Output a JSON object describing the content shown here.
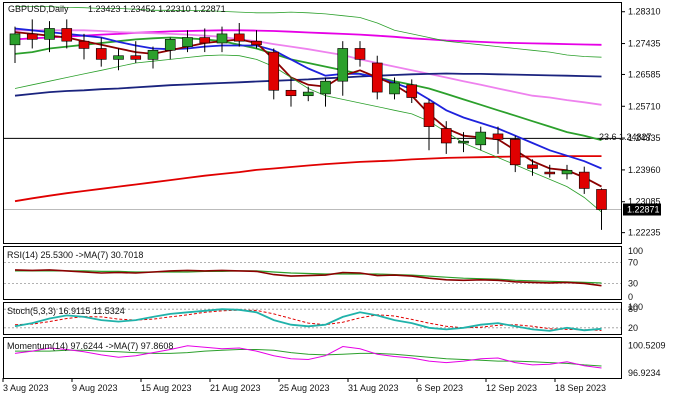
{
  "chart_data": {
    "type": "candlestick",
    "symbol_label": "GBPUSD,Daily",
    "ohlc_label": "1.23423 1.23452 1.22310 1.22871",
    "current_price": 1.22871,
    "price_axis": {
      "range": [
        1.2195,
        1.2855
      ],
      "ticks": [
        1.2831,
        1.27435,
        1.26585,
        1.2571,
        1.24835,
        1.2396,
        1.23085,
        1.22235
      ],
      "tick_labels": [
        "1.28310",
        "1.27435",
        "1.26585",
        "1.25710",
        "1.24835",
        "1.23960",
        "1.23085",
        "1.22235"
      ]
    },
    "fib_line": {
      "label": "23.6 1.24827",
      "value": 1.24827
    },
    "x_labels": [
      {
        "label": "3 Aug 2023",
        "i": 0
      },
      {
        "label": "9 Aug 2023",
        "i": 4
      },
      {
        "label": "15 Aug 2023",
        "i": 8
      },
      {
        "label": "21 Aug 2023",
        "i": 12
      },
      {
        "label": "25 Aug 2023",
        "i": 16
      },
      {
        "label": "31 Aug 2023",
        "i": 20
      },
      {
        "label": "6 Sep 2023",
        "i": 24
      },
      {
        "label": "12 Sep 2023",
        "i": 28
      },
      {
        "label": "18 Sep 2023",
        "i": 32
      }
    ],
    "candles": [
      {
        "o": 1.274,
        "h": 1.279,
        "l": 1.269,
        "c": 1.277
      },
      {
        "o": 1.277,
        "h": 1.281,
        "l": 1.273,
        "c": 1.2755
      },
      {
        "o": 1.2755,
        "h": 1.2805,
        "l": 1.272,
        "c": 1.2785
      },
      {
        "o": 1.2785,
        "h": 1.281,
        "l": 1.273,
        "c": 1.275
      },
      {
        "o": 1.275,
        "h": 1.277,
        "l": 1.27,
        "c": 1.273
      },
      {
        "o": 1.273,
        "h": 1.276,
        "l": 1.268,
        "c": 1.27
      },
      {
        "o": 1.27,
        "h": 1.273,
        "l": 1.267,
        "c": 1.271
      },
      {
        "o": 1.271,
        "h": 1.275,
        "l": 1.269,
        "c": 1.27
      },
      {
        "o": 1.27,
        "h": 1.2735,
        "l": 1.2675,
        "c": 1.2725
      },
      {
        "o": 1.2725,
        "h": 1.276,
        "l": 1.27,
        "c": 1.2755
      },
      {
        "o": 1.2735,
        "h": 1.278,
        "l": 1.272,
        "c": 1.276
      },
      {
        "o": 1.276,
        "h": 1.2785,
        "l": 1.272,
        "c": 1.2745
      },
      {
        "o": 1.2745,
        "h": 1.279,
        "l": 1.272,
        "c": 1.277
      },
      {
        "o": 1.277,
        "h": 1.28,
        "l": 1.2735,
        "c": 1.275
      },
      {
        "o": 1.275,
        "h": 1.278,
        "l": 1.273,
        "c": 1.274
      },
      {
        "o": 1.272,
        "h": 1.273,
        "l": 1.259,
        "c": 1.2615
      },
      {
        "o": 1.2615,
        "h": 1.265,
        "l": 1.257,
        "c": 1.26
      },
      {
        "o": 1.26,
        "h": 1.2625,
        "l": 1.2585,
        "c": 1.261
      },
      {
        "o": 1.2605,
        "h": 1.265,
        "l": 1.257,
        "c": 1.264
      },
      {
        "o": 1.264,
        "h": 1.275,
        "l": 1.26,
        "c": 1.273
      },
      {
        "o": 1.273,
        "h": 1.275,
        "l": 1.268,
        "c": 1.27
      },
      {
        "o": 1.269,
        "h": 1.271,
        "l": 1.259,
        "c": 1.261
      },
      {
        "o": 1.2605,
        "h": 1.265,
        "l": 1.259,
        "c": 1.2635
      },
      {
        "o": 1.263,
        "h": 1.2645,
        "l": 1.258,
        "c": 1.2595
      },
      {
        "o": 1.258,
        "h": 1.259,
        "l": 1.245,
        "c": 1.2515
      },
      {
        "o": 1.251,
        "h": 1.253,
        "l": 1.244,
        "c": 1.247
      },
      {
        "o": 1.247,
        "h": 1.25,
        "l": 1.2445,
        "c": 1.2475
      },
      {
        "o": 1.2465,
        "h": 1.2515,
        "l": 1.245,
        "c": 1.25
      },
      {
        "o": 1.2495,
        "h": 1.2515,
        "l": 1.244,
        "c": 1.248
      },
      {
        "o": 1.248,
        "h": 1.249,
        "l": 1.239,
        "c": 1.241
      },
      {
        "o": 1.241,
        "h": 1.2425,
        "l": 1.238,
        "c": 1.24
      },
      {
        "o": 1.239,
        "h": 1.241,
        "l": 1.2375,
        "c": 1.2385
      },
      {
        "o": 1.2385,
        "h": 1.241,
        "l": 1.237,
        "c": 1.2395
      },
      {
        "o": 1.239,
        "h": 1.2405,
        "l": 1.233,
        "c": 1.2345
      },
      {
        "o": 1.23423,
        "h": 1.23452,
        "l": 1.2231,
        "c": 1.22871
      }
    ],
    "price_series": [
      {
        "color": "#2ca02c",
        "values": [
          1.2715,
          1.272,
          1.273,
          1.2735,
          1.274,
          1.2745,
          1.275,
          1.2755,
          1.2758,
          1.276,
          1.2758,
          1.2755,
          1.275,
          1.274,
          1.273,
          1.2715,
          1.27,
          1.269,
          1.268,
          1.267,
          1.266,
          1.265,
          1.264,
          1.263,
          1.262,
          1.2605,
          1.259,
          1.2575,
          1.256,
          1.2545,
          1.253,
          1.2515,
          1.25,
          1.249,
          1.2478
        ]
      },
      {
        "color": "#e600e6",
        "values": [
          1.2755,
          1.2758,
          1.276,
          1.2763,
          1.2765,
          1.2768,
          1.277,
          1.2773,
          1.2775,
          1.2777,
          1.2778,
          1.2779,
          1.278,
          1.278,
          1.2779,
          1.2778,
          1.2776,
          1.2774,
          1.2772,
          1.277,
          1.2768,
          1.2765,
          1.2762,
          1.2758,
          1.2755,
          1.2752,
          1.275,
          1.2748,
          1.2746,
          1.2745,
          1.2744,
          1.2743,
          1.2742,
          1.2741,
          1.274
        ]
      },
      {
        "color": "#ee82ee",
        "values": [
          1.278,
          1.278,
          1.278,
          1.278,
          1.278,
          1.2778,
          1.2775,
          1.2773,
          1.2772,
          1.277,
          1.2768,
          1.2765,
          1.2762,
          1.2755,
          1.275,
          1.2742,
          1.2735,
          1.2728,
          1.272,
          1.2712,
          1.27,
          1.269,
          1.268,
          1.267,
          1.266,
          1.265,
          1.264,
          1.263,
          1.262,
          1.261,
          1.26,
          1.2595,
          1.2588,
          1.2582,
          1.2575
        ]
      },
      {
        "color": "#1a237e",
        "values": [
          1.26,
          1.2605,
          1.261,
          1.2613,
          1.2615,
          1.2618,
          1.262,
          1.2623,
          1.2626,
          1.2629,
          1.2631,
          1.2633,
          1.2635,
          1.2637,
          1.2639,
          1.2641,
          1.2643,
          1.2645,
          1.2648,
          1.265,
          1.2653,
          1.2655,
          1.2657,
          1.2659,
          1.266,
          1.2661,
          1.266,
          1.266,
          1.2659,
          1.2658,
          1.2657,
          1.2656,
          1.2655,
          1.2654,
          1.2653
        ]
      },
      {
        "color": "#e00000",
        "values": [
          1.231,
          1.2318,
          1.2325,
          1.2332,
          1.2338,
          1.2344,
          1.235,
          1.2356,
          1.2362,
          1.2368,
          1.2374,
          1.238,
          1.2385,
          1.239,
          1.2396,
          1.24,
          1.2404,
          1.2408,
          1.2412,
          1.2415,
          1.2418,
          1.242,
          1.2422,
          1.2425,
          1.2427,
          1.2429,
          1.243,
          1.2431,
          1.2432,
          1.2433,
          1.2433,
          1.2434,
          1.2434,
          1.2434,
          1.2434
        ]
      },
      {
        "color": "#1e22dd",
        "values": [
          1.2785,
          1.278,
          1.2775,
          1.277,
          1.2765,
          1.276,
          1.2748,
          1.2738,
          1.273,
          1.2728,
          1.273,
          1.2735,
          1.2738,
          1.2738,
          1.2738,
          1.2725,
          1.27,
          1.2675,
          1.2655,
          1.266,
          1.266,
          1.265,
          1.2635,
          1.2618,
          1.259,
          1.256,
          1.254,
          1.2525,
          1.251,
          1.249,
          1.247,
          1.245,
          1.2435,
          1.242,
          1.24
        ]
      },
      {
        "color": "#8b0000",
        "values": [
          1.2775,
          1.277,
          1.2765,
          1.276,
          1.275,
          1.274,
          1.273,
          1.272,
          1.2715,
          1.2725,
          1.2735,
          1.2745,
          1.275,
          1.2755,
          1.2745,
          1.27,
          1.265,
          1.263,
          1.2625,
          1.2655,
          1.267,
          1.265,
          1.263,
          1.26,
          1.255,
          1.251,
          1.249,
          1.2485,
          1.248,
          1.245,
          1.242,
          1.24,
          1.2395,
          1.2375,
          1.235
        ]
      },
      {
        "color": "#2ca02c",
        "width": 0.8,
        "values": [
          1.2845,
          1.2845,
          1.2845,
          1.2843,
          1.2842,
          1.284,
          1.284,
          1.2838,
          1.2835,
          1.2835,
          1.2834,
          1.2834,
          1.2832,
          1.283,
          1.2828,
          1.2828,
          1.283,
          1.2828,
          1.2825,
          1.282,
          1.2815,
          1.28,
          1.278,
          1.277,
          1.276,
          1.275,
          1.2745,
          1.274,
          1.2735,
          1.273,
          1.2725,
          1.272,
          1.2712,
          1.2708,
          1.2706
        ]
      },
      {
        "color": "#2ca02c",
        "width": 0.8,
        "values": [
          1.262,
          1.263,
          1.264,
          1.265,
          1.266,
          1.267,
          1.268,
          1.269,
          1.2695,
          1.27,
          1.2705,
          1.271,
          1.2712,
          1.271,
          1.27,
          1.268,
          1.265,
          1.262,
          1.26,
          1.259,
          1.258,
          1.257,
          1.256,
          1.255,
          1.253,
          1.25,
          1.247,
          1.245,
          1.243,
          1.241,
          1.239,
          1.237,
          1.235,
          1.232,
          1.228
        ]
      }
    ],
    "rsi": {
      "label": "RSI(14) 25.5300 ->MA(7) 30.7018",
      "range": [
        0,
        100
      ],
      "ticks": [
        100,
        70,
        30,
        0
      ],
      "tick_labels": [
        "100",
        "70",
        "30",
        "0"
      ],
      "levels": [
        70,
        30
      ],
      "line": {
        "color": "#8b0000",
        "values": [
          56,
          55,
          56,
          54,
          52,
          50,
          51,
          50,
          52,
          54,
          55,
          54,
          55,
          54,
          53,
          47,
          44,
          45,
          46,
          51,
          50,
          45,
          46,
          44,
          40,
          37,
          36,
          37,
          36,
          33,
          32,
          31,
          32,
          30,
          25.5
        ]
      },
      "ma": {
        "color": "#2ca02c",
        "values": [
          54,
          54,
          54,
          54,
          54,
          53,
          53,
          52,
          52,
          52,
          52,
          53,
          53,
          54,
          54,
          52,
          50,
          49,
          48,
          48,
          48,
          48,
          47,
          46,
          44,
          42,
          40,
          39,
          38,
          36,
          35,
          34,
          33,
          32,
          30.7
        ]
      }
    },
    "stoch": {
      "label": "Stoch(5,3,3) 16.9115 11.5324",
      "range": [
        0,
        100
      ],
      "ticks": [
        100,
        80,
        20
      ],
      "tick_labels": [
        "100",
        "80",
        "20"
      ],
      "levels": [
        80,
        20
      ],
      "k": {
        "color": "#20b2aa",
        "values": [
          25,
          35,
          50,
          60,
          55,
          45,
          40,
          45,
          55,
          65,
          70,
          75,
          80,
          78,
          70,
          45,
          30,
          25,
          30,
          55,
          70,
          60,
          45,
          35,
          20,
          15,
          20,
          30,
          35,
          25,
          15,
          10,
          20,
          12,
          16.9
        ]
      },
      "d": {
        "color": "#e00000",
        "values": [
          30,
          32,
          40,
          50,
          56,
          55,
          48,
          45,
          48,
          55,
          62,
          70,
          75,
          77,
          76,
          65,
          50,
          35,
          30,
          38,
          52,
          62,
          58,
          47,
          35,
          25,
          20,
          22,
          28,
          30,
          25,
          17,
          15,
          14,
          11.5
        ]
      }
    },
    "momentum": {
      "label": "Momentum(14) 97.6244 ->MA(7) 97.8608",
      "range": [
        96.3,
        101.5
      ],
      "ticks": [
        100.5209,
        96.9234
      ],
      "tick_labels": [
        "100.5209",
        "96.9234"
      ],
      "line": {
        "color": "#e600e6",
        "values": [
          99.5,
          99.8,
          100.2,
          100.0,
          99.7,
          99.3,
          99.0,
          99.2,
          99.6,
          100.0,
          100.5,
          100.3,
          100.1,
          100.2,
          99.8,
          99.2,
          98.8,
          98.7,
          99.2,
          100.4,
          100.1,
          99.4,
          99.1,
          98.9,
          98.5,
          98.3,
          98.5,
          98.8,
          98.9,
          98.3,
          98.0,
          98.1,
          98.4,
          97.9,
          97.6
        ]
      },
      "ma": {
        "color": "#2ca02c",
        "values": [
          99.8,
          99.8,
          99.8,
          99.9,
          99.9,
          99.8,
          99.7,
          99.6,
          99.5,
          99.5,
          99.6,
          99.8,
          99.9,
          100.0,
          100.0,
          99.9,
          99.6,
          99.4,
          99.3,
          99.4,
          99.5,
          99.5,
          99.4,
          99.2,
          99.0,
          98.8,
          98.7,
          98.6,
          98.5,
          98.5,
          98.4,
          98.3,
          98.2,
          98.0,
          97.86
        ]
      }
    }
  }
}
